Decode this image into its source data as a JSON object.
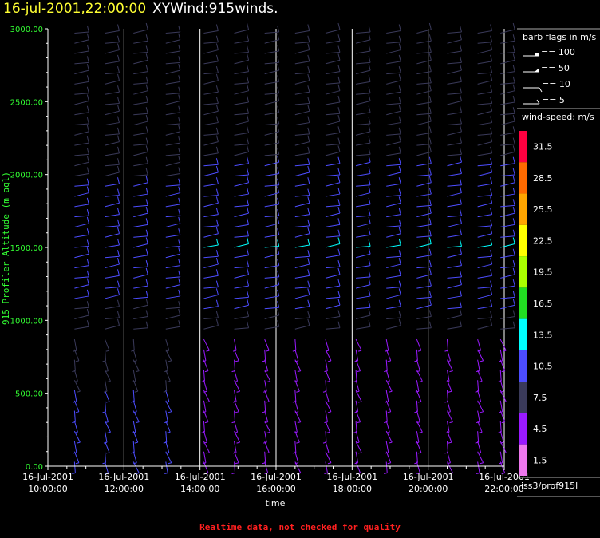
{
  "header": {
    "date_label": "16-jul-2001,22:00:00",
    "name_label": "XYWind:915winds."
  },
  "footer": {
    "note": "Realtime data, not checked for quality"
  },
  "chart_data": {
    "type": "wind-barb",
    "title": "16-jul-2001,22:00:00  XYWind:915winds.",
    "xlabel": "time",
    "ylabel": "915 Profiler Altitude (m agl)",
    "x_ticks": [
      {
        "date": "16-Jul-2001",
        "time": "10:00:00"
      },
      {
        "date": "16-Jul-2001",
        "time": "12:00:00"
      },
      {
        "date": "16-Jul-2001",
        "time": "14:00:00"
      },
      {
        "date": "16-Jul-2001",
        "time": "16:00:00"
      },
      {
        "date": "16-Jul-2001",
        "time": "18:00:00"
      },
      {
        "date": "16-Jul-2001",
        "time": "20:00:00"
      },
      {
        "date": "16-Jul-2001",
        "time": "22:00:00"
      }
    ],
    "xlim_hours": [
      10,
      22
    ],
    "y_ticks": [
      "0.00",
      "500.00",
      "1000.00",
      "1500.00",
      "2000.00",
      "2500.00",
      "3000.00"
    ],
    "ylim": [
      0,
      3000
    ],
    "vertical_lines_hours": [
      12,
      14,
      16,
      18,
      20,
      22
    ],
    "colors": {
      "axis": "#ffffff",
      "ylabel": "#33ff33",
      "ytick": "#33ff33",
      "date": "#ffff33",
      "grid": "#ffffff"
    },
    "barb_legend": {
      "title": "barb flags in m/s",
      "items": [
        "== 100",
        "== 50",
        "== 10",
        "== 5"
      ]
    },
    "colorbar": {
      "title": "wind-speed: m/s",
      "labels": [
        "31.5",
        "28.5",
        "25.5",
        "22.5",
        "19.5",
        "16.5",
        "13.5",
        "10.5",
        "7.5",
        "4.5",
        "1.5"
      ],
      "colors": [
        "#ff0040",
        "#ff6a00",
        "#ffa500",
        "#ffff00",
        "#aaff00",
        "#22dd22",
        "#00ffff",
        "#4d4dff",
        "#3a3a5a",
        "#9a1aff",
        "#ee77ee"
      ]
    },
    "source_label": "iss3/prof915l",
    "wind_profile": {
      "levels_m": [
        30,
        100,
        170,
        240,
        310,
        380,
        450,
        520,
        590,
        660,
        730,
        800,
        870,
        940,
        1010,
        1080,
        1150,
        1220,
        1290,
        1360,
        1430,
        1500,
        1570,
        1640,
        1710,
        1780,
        1850,
        1920,
        1990,
        2060,
        2130,
        2200,
        2270,
        2340,
        2410,
        2480,
        2550,
        2620,
        2690,
        2760,
        2830,
        2900,
        2970
      ],
      "series": [
        {
          "hour": 10.7,
          "speed_ms": [
            9.8,
            9.8,
            9.8,
            9.8,
            9.8,
            9.8,
            9.8,
            9.8,
            8.2,
            7.9,
            7.6,
            7.3,
            7.0,
            7.3,
            7.7,
            8.5,
            9.1,
            9.4,
            9.6,
            9.9,
            10.1,
            10.3,
            10.3,
            10.2,
            10.0,
            9.7,
            9.5,
            9.2,
            9.0,
            8.7,
            8.5,
            8.2,
            8.0,
            7.8,
            7.6,
            7.4,
            7.2,
            7.0,
            6.9,
            6.8,
            6.7,
            6.6,
            6.5
          ]
        },
        {
          "hour": 11.5,
          "speed_ms": [
            9.8,
            9.8,
            9.8,
            9.8,
            9.8,
            9.8,
            9.8,
            9.8,
            8.2,
            7.9,
            7.6,
            7.3,
            7.0,
            7.3,
            7.7,
            8.5,
            9.1,
            9.4,
            9.6,
            9.9,
            10.1,
            10.3,
            10.3,
            10.2,
            10.0,
            9.7,
            9.5,
            9.2,
            9.0,
            8.7,
            8.5,
            8.2,
            8.0,
            7.8,
            7.6,
            7.4,
            7.2,
            7.0,
            6.9,
            6.8,
            6.7,
            6.6,
            6.5
          ]
        },
        {
          "hour": 12.25,
          "speed_ms": [
            9.8,
            9.8,
            9.8,
            9.8,
            9.8,
            9.8,
            9.8,
            9.8,
            8.2,
            7.9,
            7.6,
            7.3,
            7.0,
            7.3,
            7.7,
            8.5,
            9.1,
            9.4,
            9.6,
            9.9,
            10.1,
            10.3,
            10.3,
            10.2,
            10.0,
            9.7,
            9.5,
            9.2,
            9.0,
            8.7,
            8.5,
            8.2,
            8.0,
            7.8,
            7.6,
            7.4,
            7.2,
            7.0,
            6.9,
            6.8,
            6.7,
            6.6,
            6.5
          ]
        },
        {
          "hour": 13.1,
          "speed_ms": [
            9.8,
            9.8,
            9.8,
            9.8,
            9.8,
            9.8,
            9.8,
            9.8,
            8.2,
            7.9,
            7.6,
            7.3,
            7.0,
            7.3,
            7.7,
            8.5,
            9.1,
            9.4,
            9.6,
            9.9,
            10.1,
            10.3,
            10.3,
            10.2,
            10.0,
            9.7,
            9.5,
            9.2,
            9.0,
            8.7,
            8.5,
            8.2,
            8.0,
            7.8,
            7.6,
            7.4,
            7.2,
            7.0,
            6.9,
            6.8,
            6.7,
            6.6,
            6.5
          ]
        },
        {
          "hour": 14.1,
          "speed_ms": [
            4.5,
            4.5,
            4.5,
            4.5,
            4.5,
            4.5,
            4.5,
            4.5,
            4.5,
            4.5,
            4.5,
            4.5,
            4.5,
            7.8,
            8.6,
            9.3,
            10.0,
            10.6,
            11.2,
            11.7,
            12.0,
            12.1,
            11.9,
            11.6,
            11.2,
            10.8,
            10.3,
            9.9,
            9.5,
            9.1,
            8.8,
            8.5,
            8.2,
            7.9,
            7.6,
            7.3,
            7.1,
            6.9,
            6.8,
            6.7,
            6.6,
            6.5,
            6.4
          ]
        },
        {
          "hour": 14.9,
          "speed_ms": [
            4.5,
            4.5,
            4.5,
            4.5,
            4.5,
            4.5,
            4.5,
            4.5,
            4.5,
            4.5,
            4.5,
            4.5,
            4.5,
            7.8,
            8.6,
            9.3,
            10.0,
            10.6,
            11.2,
            11.7,
            12.0,
            12.1,
            11.9,
            11.6,
            11.2,
            10.8,
            10.3,
            9.9,
            9.5,
            9.1,
            8.8,
            8.5,
            8.2,
            7.9,
            7.6,
            7.3,
            7.1,
            6.9,
            6.8,
            6.7,
            6.6,
            6.5,
            6.4
          ]
        },
        {
          "hour": 15.7,
          "speed_ms": [
            4.5,
            4.5,
            4.5,
            4.5,
            4.5,
            4.5,
            4.5,
            4.5,
            4.5,
            4.5,
            4.5,
            4.5,
            4.5,
            7.8,
            8.6,
            9.3,
            10.0,
            10.6,
            11.2,
            11.7,
            12.0,
            12.1,
            11.9,
            11.6,
            11.2,
            10.8,
            10.3,
            9.9,
            9.5,
            9.1,
            8.8,
            8.5,
            8.2,
            7.9,
            7.6,
            7.3,
            7.1,
            6.9,
            6.8,
            6.7,
            6.6,
            6.5,
            6.4
          ]
        },
        {
          "hour": 16.5,
          "speed_ms": [
            4.5,
            4.5,
            4.5,
            4.5,
            4.5,
            4.5,
            4.5,
            4.5,
            4.5,
            4.5,
            4.5,
            4.5,
            4.5,
            7.8,
            8.6,
            9.3,
            10.0,
            10.6,
            11.2,
            11.7,
            12.0,
            12.1,
            11.9,
            11.6,
            11.2,
            10.8,
            10.3,
            9.9,
            9.5,
            9.1,
            8.8,
            8.5,
            8.2,
            7.9,
            7.6,
            7.3,
            7.1,
            6.9,
            6.8,
            6.7,
            6.6,
            6.5,
            6.4
          ]
        },
        {
          "hour": 17.3,
          "speed_ms": [
            4.5,
            4.5,
            4.5,
            4.5,
            4.5,
            4.5,
            4.5,
            4.5,
            4.5,
            4.5,
            4.5,
            4.5,
            4.5,
            7.8,
            8.6,
            9.3,
            10.0,
            10.6,
            11.2,
            11.7,
            12.0,
            12.1,
            11.9,
            11.6,
            11.2,
            10.8,
            10.3,
            9.9,
            9.5,
            9.1,
            8.8,
            8.5,
            8.2,
            7.9,
            7.6,
            7.3,
            7.1,
            6.9,
            6.8,
            6.7,
            6.6,
            6.5,
            6.4
          ]
        },
        {
          "hour": 18.1,
          "speed_ms": [
            4.5,
            4.5,
            4.5,
            4.5,
            4.5,
            4.5,
            4.5,
            4.5,
            4.5,
            4.5,
            4.5,
            4.5,
            4.5,
            7.8,
            8.6,
            9.3,
            10.0,
            10.6,
            11.2,
            11.7,
            12.0,
            12.1,
            11.9,
            11.6,
            11.2,
            10.8,
            10.3,
            9.9,
            9.5,
            9.1,
            8.8,
            8.5,
            8.2,
            7.9,
            7.6,
            7.3,
            7.1,
            6.9,
            6.8,
            6.7,
            6.6,
            6.5,
            6.4
          ]
        },
        {
          "hour": 18.9,
          "speed_ms": [
            4.5,
            4.5,
            4.5,
            4.5,
            4.5,
            4.5,
            4.5,
            4.5,
            4.5,
            4.5,
            4.5,
            4.5,
            4.5,
            7.8,
            8.6,
            9.3,
            10.0,
            10.6,
            11.2,
            11.7,
            12.0,
            12.1,
            11.9,
            11.6,
            11.2,
            10.8,
            10.3,
            9.9,
            9.5,
            9.1,
            8.8,
            8.5,
            8.2,
            7.9,
            7.6,
            7.3,
            7.1,
            6.9,
            6.8,
            6.7,
            6.6,
            6.5,
            6.4
          ]
        },
        {
          "hour": 19.7,
          "speed_ms": [
            4.5,
            4.5,
            4.5,
            4.5,
            4.5,
            4.5,
            4.5,
            4.5,
            4.5,
            4.5,
            4.5,
            4.5,
            4.5,
            7.8,
            8.6,
            9.3,
            10.0,
            10.6,
            11.2,
            11.7,
            12.0,
            12.1,
            11.9,
            11.6,
            11.2,
            10.8,
            10.3,
            9.9,
            9.5,
            9.1,
            8.8,
            8.5,
            8.2,
            7.9,
            7.6,
            7.3,
            7.1,
            6.9,
            6.8,
            6.7,
            6.6,
            6.5,
            6.4
          ]
        },
        {
          "hour": 20.5,
          "speed_ms": [
            4.5,
            4.5,
            4.5,
            4.5,
            4.5,
            4.5,
            4.5,
            4.5,
            4.5,
            4.5,
            4.5,
            4.5,
            4.5,
            7.8,
            8.6,
            9.3,
            10.0,
            10.6,
            11.2,
            11.7,
            12.0,
            12.1,
            11.9,
            11.6,
            11.2,
            10.8,
            10.3,
            9.9,
            9.5,
            9.1,
            8.8,
            8.5,
            8.2,
            7.9,
            7.6,
            7.3,
            7.1,
            6.9,
            6.8,
            6.7,
            6.6,
            6.5,
            6.4
          ]
        },
        {
          "hour": 21.3,
          "speed_ms": [
            4.5,
            4.5,
            4.5,
            4.5,
            4.5,
            4.5,
            4.5,
            4.5,
            4.5,
            4.5,
            4.5,
            4.5,
            4.5,
            7.8,
            8.6,
            9.3,
            10.0,
            10.6,
            11.2,
            11.7,
            12.0,
            12.1,
            11.9,
            11.6,
            11.2,
            10.8,
            10.3,
            9.9,
            9.5,
            9.1,
            8.8,
            8.5,
            8.2,
            7.9,
            7.6,
            7.3,
            7.1,
            6.9,
            6.8,
            6.7,
            6.6,
            6.5,
            6.4
          ]
        },
        {
          "hour": 21.9,
          "speed_ms": [
            4.5,
            4.5,
            4.5,
            4.5,
            4.5,
            4.5,
            4.5,
            4.5,
            4.5,
            4.5,
            4.5,
            4.5,
            4.5,
            7.8,
            8.6,
            9.3,
            10.0,
            10.6,
            11.2,
            11.7,
            12.0,
            12.1,
            11.9,
            11.6,
            11.2,
            10.8,
            10.3,
            9.9,
            9.5,
            9.1,
            8.8,
            8.5,
            8.2,
            7.9,
            7.6,
            7.3,
            7.1,
            6.9,
            6.8,
            6.7,
            6.6,
            6.5,
            6.4
          ]
        }
      ]
    }
  }
}
